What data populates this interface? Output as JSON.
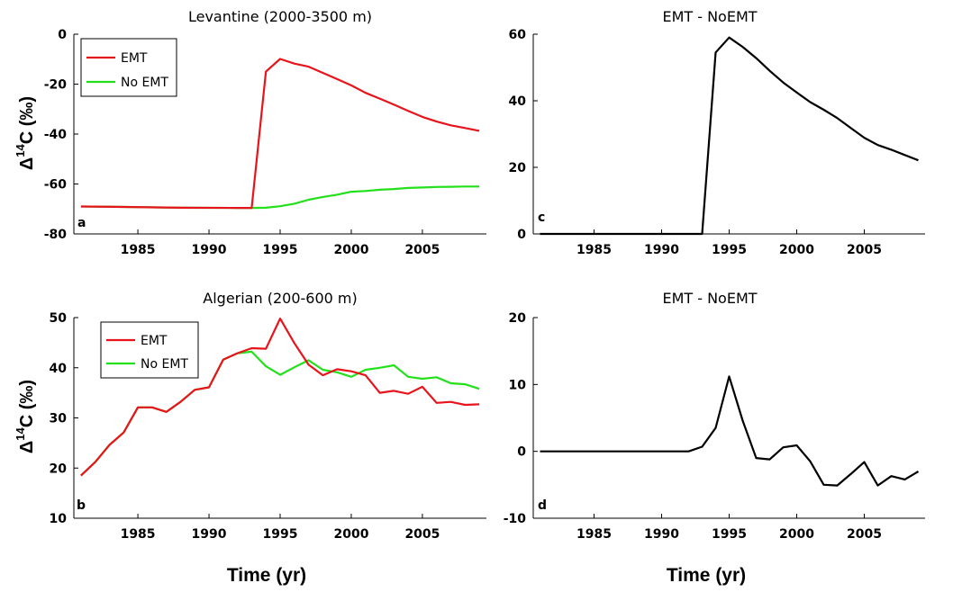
{
  "figure": {
    "x_axis_label": "Time (yr)",
    "y_axis_label_prefix": "Δ",
    "y_axis_label_sup": "14",
    "y_axis_label_suffix": "C (‰)"
  },
  "chart_data": [
    {
      "id": "a",
      "type": "line",
      "title": "Levantine (2000-3500 m)",
      "panel_label": "a",
      "xlabel": "",
      "ylabel": "Δ14C (‰)",
      "xlim": [
        1980.5,
        2009.5
      ],
      "ylim": [
        -80,
        0
      ],
      "xticks": [
        1985,
        1990,
        1995,
        2000,
        2005
      ],
      "yticks": [
        -80,
        -60,
        -40,
        -20,
        0
      ],
      "grid": false,
      "legend": "top-left",
      "series": [
        {
          "name": "EMT",
          "color": "#e8141b",
          "x": [
            1981,
            1984,
            1988,
            1992,
            1993,
            1994,
            1995,
            1996,
            1997,
            1998,
            1999,
            2000,
            2001,
            2002,
            2003,
            2004,
            2005,
            2006,
            2007,
            2008,
            2009
          ],
          "y": [
            -69,
            -69.2,
            -69.5,
            -69.6,
            -69.6,
            -15,
            -9.9,
            -11.8,
            -13,
            -15.5,
            -18,
            -20.5,
            -23.5,
            -25.8,
            -28.2,
            -30.7,
            -33.1,
            -35,
            -36.5,
            -37.6,
            -38.7
          ]
        },
        {
          "name": "No EMT",
          "color": "#22e11a",
          "x": [
            1981,
            1984,
            1988,
            1992,
            1993,
            1994,
            1995,
            1996,
            1997,
            1998,
            1999,
            2000,
            2001,
            2002,
            2003,
            2004,
            2005,
            2006,
            2007,
            2008,
            2009
          ],
          "y": [
            -69,
            -69.2,
            -69.5,
            -69.6,
            -69.6,
            -69.5,
            -68.9,
            -67.9,
            -66.3,
            -65.2,
            -64.3,
            -63.1,
            -62.8,
            -62.3,
            -62,
            -61.6,
            -61.4,
            -61.2,
            -61.1,
            -61,
            -61
          ]
        }
      ]
    },
    {
      "id": "c",
      "type": "line",
      "title": "EMT - NoEMT",
      "panel_label": "c",
      "xlabel": "",
      "ylabel": "",
      "xlim": [
        1980.5,
        2009.5
      ],
      "ylim": [
        0,
        60
      ],
      "xticks": [
        1985,
        1990,
        1995,
        2000,
        2005
      ],
      "yticks": [
        0,
        20,
        40,
        60
      ],
      "grid": false,
      "series": [
        {
          "color": "#000000",
          "x": [
            1981,
            1985,
            1990,
            1992,
            1993,
            1994,
            1995,
            1996,
            1997,
            1998,
            1999,
            2000,
            2001,
            2002,
            2003,
            2004,
            2005,
            2006,
            2007,
            2008,
            2009
          ],
          "y": [
            0,
            0,
            0,
            0,
            0,
            54.5,
            59,
            56.2,
            52.8,
            49,
            45.5,
            42.5,
            39.6,
            37.3,
            34.8,
            31.8,
            28.9,
            26.7,
            25.3,
            23.7,
            22.1
          ]
        }
      ]
    },
    {
      "id": "b",
      "type": "line",
      "title": "Algerian (200-600 m)",
      "panel_label": "b",
      "xlabel": "Time (yr)",
      "ylabel": "Δ14C (‰)",
      "xlim": [
        1980.5,
        2009.5
      ],
      "ylim": [
        10,
        50
      ],
      "xticks": [
        1985,
        1990,
        1995,
        2000,
        2005
      ],
      "yticks": [
        10,
        20,
        30,
        40,
        50
      ],
      "grid": false,
      "legend": "top-left",
      "series": [
        {
          "name": "EMT",
          "color": "#e8141b",
          "x": [
            1981,
            1982,
            1983,
            1984,
            1985,
            1986,
            1987,
            1988,
            1989,
            1990,
            1991,
            1992,
            1993,
            1994,
            1995,
            1996,
            1997,
            1998,
            1999,
            2000,
            2001,
            2002,
            2003,
            2004,
            2005,
            2006,
            2007,
            2008,
            2009
          ],
          "y": [
            18.5,
            21.2,
            24.6,
            27.1,
            32.1,
            32.1,
            31.2,
            33.2,
            35.6,
            36.1,
            41.6,
            42.9,
            43.9,
            43.8,
            49.8,
            44.9,
            40.6,
            38.5,
            39.7,
            39.3,
            38.5,
            35,
            35.4,
            34.8,
            36.2,
            33,
            33.2,
            32.6,
            32.7
          ]
        },
        {
          "name": "No EMT",
          "color": "#22e11a",
          "x": [
            1981,
            1982,
            1983,
            1984,
            1985,
            1986,
            1987,
            1988,
            1989,
            1990,
            1991,
            1992,
            1993,
            1994,
            1995,
            1996,
            1997,
            1998,
            1999,
            2000,
            2001,
            2002,
            2003,
            2004,
            2005,
            2006,
            2007,
            2008,
            2009
          ],
          "y": [
            18.5,
            21.2,
            24.6,
            27.1,
            32.1,
            32.1,
            31.2,
            33.2,
            35.6,
            36.1,
            41.6,
            42.9,
            43.2,
            40.3,
            38.6,
            40.1,
            41.5,
            39.6,
            39.1,
            38.2,
            39.6,
            40,
            40.5,
            38.2,
            37.8,
            38.1,
            36.9,
            36.7,
            35.8
          ]
        }
      ]
    },
    {
      "id": "d",
      "type": "line",
      "title": "EMT - NoEMT",
      "panel_label": "d",
      "xlabel": "Time (yr)",
      "ylabel": "",
      "xlim": [
        1980.5,
        2009.5
      ],
      "ylim": [
        -10,
        20
      ],
      "xticks": [
        1985,
        1990,
        1995,
        2000,
        2005
      ],
      "yticks": [
        -10,
        0,
        10,
        20
      ],
      "grid": false,
      "series": [
        {
          "color": "#000000",
          "x": [
            1981,
            1985,
            1990,
            1992,
            1993,
            1994,
            1995,
            1996,
            1997,
            1998,
            1999,
            2000,
            2001,
            2002,
            2003,
            2004,
            2005,
            2006,
            2007,
            2008,
            2009
          ],
          "y": [
            0,
            0,
            0,
            0,
            0.7,
            3.5,
            11.2,
            4.6,
            -1,
            -1.2,
            0.6,
            0.9,
            -1.5,
            -5,
            -5.1,
            -3.4,
            -1.6,
            -5.1,
            -3.7,
            -4.2,
            -3
          ]
        }
      ]
    }
  ]
}
